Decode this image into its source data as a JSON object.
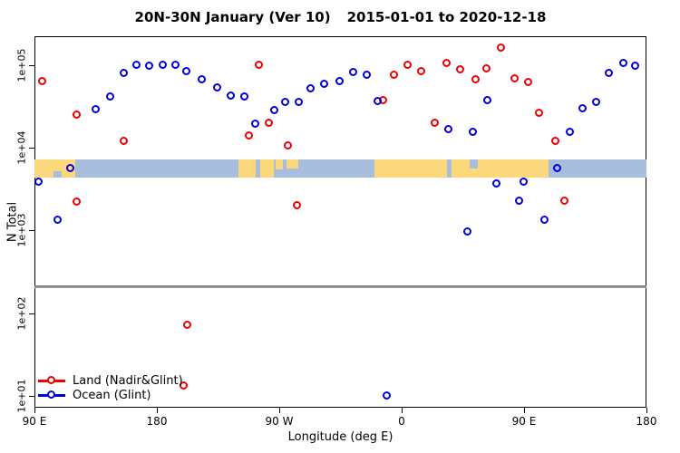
{
  "title": {
    "part1": "20N-30N January (Ver 10)",
    "part2": "2015-01-01 to 2020-12-18"
  },
  "axes": {
    "x": {
      "title": "Longitude (deg E)",
      "range_deg": [
        90,
        540
      ],
      "ticks": [
        {
          "deg": 90,
          "label": "90 E"
        },
        {
          "deg": 180,
          "label": "180"
        },
        {
          "deg": 270,
          "label": "90 W"
        },
        {
          "deg": 360,
          "label": "0"
        },
        {
          "deg": 450,
          "label": "90 E"
        },
        {
          "deg": 540,
          "label": "180"
        }
      ]
    },
    "y": {
      "title": "N Total",
      "scale": "log10",
      "ticks": [
        {
          "value": 100000,
          "label": "1e+05"
        },
        {
          "value": 10000,
          "label": "1e+04"
        },
        {
          "value": 1000,
          "label": "1e+03"
        },
        {
          "value": 100,
          "label": "1e+02"
        },
        {
          "value": 10,
          "label": "1e+01"
        }
      ]
    }
  },
  "legend": {
    "items": [
      {
        "label": "Land (Nadir&Glint)",
        "color": "#ee0000"
      },
      {
        "label": "Ocean (Glint)",
        "color": "#0000dd"
      }
    ]
  },
  "chart_data": {
    "type": "scatter",
    "title": "20N-30N January (Ver 10)   2015-01-01 to 2020-12-18",
    "xlabel": "Longitude (deg E)",
    "ylabel": "N Total",
    "x_axis_note": "longitude in degrees, axis runs 90E eastward through 180, 90W, 0, 90E, ending at 180 (plotted as 90..540)",
    "ylim": [
      10,
      200000
    ],
    "series": [
      {
        "name": "Land (Nadir&Glint)",
        "color": "#ee0000",
        "points": [
          [
            96,
            63000
          ],
          [
            121.3,
            25000
          ],
          [
            156,
            12000
          ],
          [
            121.3,
            2200
          ],
          [
            202.9,
            71
          ],
          [
            200.2,
            13
          ],
          [
            248,
            14000
          ],
          [
            255.3,
            100000
          ],
          [
            262.5,
            20000
          ],
          [
            276.9,
            10500
          ],
          [
            283.1,
            2000
          ],
          [
            346.5,
            37500
          ],
          [
            354.7,
            76000
          ],
          [
            364.7,
            100000
          ],
          [
            374.7,
            83000
          ],
          [
            384.7,
            20000
          ],
          [
            393.5,
            105000
          ],
          [
            403.5,
            89000
          ],
          [
            414.7,
            66000
          ],
          [
            422.5,
            91000
          ],
          [
            433.5,
            160000
          ],
          [
            443.5,
            69000
          ],
          [
            453.5,
            62000
          ],
          [
            461.3,
            26000
          ],
          [
            473.5,
            12000
          ],
          [
            479.8,
            2250
          ]
        ]
      },
      {
        "name": "Ocean (Glint)",
        "color": "#0000dd",
        "points": [
          [
            93.1,
            3850
          ],
          [
            107.5,
            1350
          ],
          [
            116.5,
            5600
          ],
          [
            135.3,
            29000
          ],
          [
            146,
            41000
          ],
          [
            156,
            80000
          ],
          [
            165.3,
            100000
          ],
          [
            174.7,
            97000
          ],
          [
            184.7,
            100000
          ],
          [
            194,
            100000
          ],
          [
            202,
            84000
          ],
          [
            213.3,
            67000
          ],
          [
            224.7,
            53000
          ],
          [
            234.7,
            42000
          ],
          [
            244.7,
            41000
          ],
          [
            252.5,
            19500
          ],
          [
            266.9,
            28000
          ],
          [
            274.7,
            35500
          ],
          [
            284.7,
            35500
          ],
          [
            293.5,
            51500
          ],
          [
            303.5,
            59000
          ],
          [
            314.7,
            63000
          ],
          [
            324.7,
            81000
          ],
          [
            334.7,
            76000
          ],
          [
            342.5,
            36500
          ],
          [
            349.1,
            10
          ],
          [
            394.7,
            16500
          ],
          [
            408.5,
            950
          ],
          [
            412.5,
            15500
          ],
          [
            423.5,
            37000
          ],
          [
            430.2,
            3650
          ],
          [
            446.5,
            2250
          ],
          [
            449.8,
            3850
          ],
          [
            465.3,
            1350
          ],
          [
            474.7,
            5600
          ],
          [
            484,
            15500
          ],
          [
            493.5,
            29500
          ],
          [
            503.1,
            35500
          ],
          [
            512.9,
            80000
          ],
          [
            523.1,
            105000
          ],
          [
            532,
            98000
          ]
        ]
      }
    ],
    "threshold_line": {
      "value": 210,
      "color": "#8c8c8c"
    },
    "map_band": {
      "ocean_color": "#a9bedc",
      "land_color": "#fbd87c",
      "land_segments_deg": [
        {
          "from": 90,
          "to": 120
        },
        {
          "from": 240,
          "to": 252.5
        },
        {
          "from": 256,
          "to": 266
        },
        {
          "from": 267.5,
          "to": 272.5,
          "h": 0.55
        },
        {
          "from": 275.5,
          "to": 284,
          "h": 0.5
        },
        {
          "from": 340,
          "to": 393
        },
        {
          "from": 396.5,
          "to": 468
        }
      ],
      "water_notches_deg": [
        {
          "from": 104,
          "to": 110,
          "h": 0.35,
          "align": "bottom"
        },
        {
          "from": 410,
          "to": 416,
          "h": 0.5,
          "align": "top"
        }
      ]
    }
  }
}
